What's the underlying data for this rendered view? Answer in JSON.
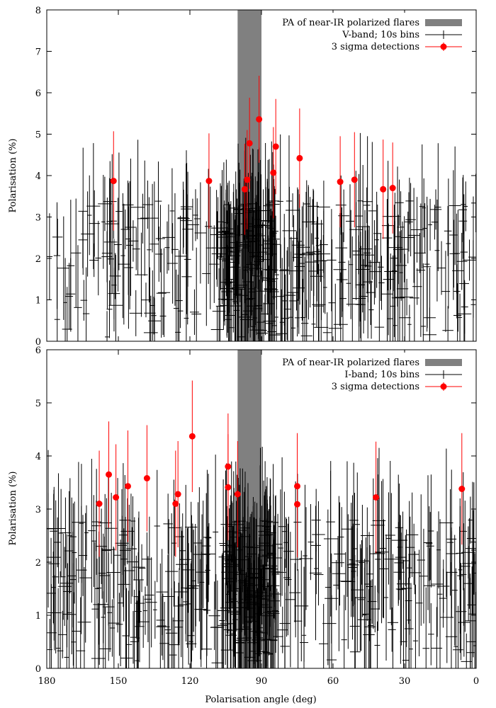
{
  "chart_data": [
    {
      "type": "scatter",
      "panel": "top",
      "title": "",
      "xlabel": "",
      "ylabel": "Polarisation (%)",
      "xlim": [
        180,
        0
      ],
      "ylim": [
        0,
        8
      ],
      "xticks": [],
      "yticks": [
        0,
        1,
        2,
        3,
        4,
        5,
        6,
        7,
        8
      ],
      "band": {
        "name": "PA of near-IR polarized flares",
        "from": 90,
        "to": 100,
        "color": "#808080"
      },
      "legend": [
        "PA of near-IR polarized flares",
        "V-band; 10s bins",
        "3 sigma detections"
      ],
      "legend_position": "top-right",
      "series": [
        {
          "name": "V-band; 10s bins",
          "kind": "errorbar-noise",
          "color": "#000000",
          "count": 450,
          "x_range": [
            0,
            180
          ],
          "y_range": [
            0.1,
            3.4
          ],
          "dense_around": 95
        },
        {
          "name": "3 sigma detections",
          "kind": "points-with-error",
          "color": "#ff0000",
          "points": [
            {
              "x": 152,
              "y": 3.87,
              "err": 1.2
            },
            {
              "x": 112,
              "y": 3.87,
              "err": 1.15
            },
            {
              "x": 97,
              "y": 3.67,
              "err": 1.1
            },
            {
              "x": 96,
              "y": 3.9,
              "err": 1.2
            },
            {
              "x": 95,
              "y": 4.78,
              "err": 1.1
            },
            {
              "x": 91,
              "y": 5.36,
              "err": 1.05
            },
            {
              "x": 85,
              "y": 4.07,
              "err": 1.1
            },
            {
              "x": 84,
              "y": 4.7,
              "err": 1.15
            },
            {
              "x": 74,
              "y": 4.42,
              "err": 1.2
            },
            {
              "x": 57,
              "y": 3.85,
              "err": 1.1
            },
            {
              "x": 51,
              "y": 3.9,
              "err": 1.15
            },
            {
              "x": 39,
              "y": 3.67,
              "err": 1.2
            },
            {
              "x": 35,
              "y": 3.7,
              "err": 1.1
            }
          ]
        }
      ]
    },
    {
      "type": "scatter",
      "panel": "bottom",
      "title": "",
      "xlabel": "Polarisation angle (deg)",
      "ylabel": "Polarisation (%)",
      "xlim": [
        180,
        0
      ],
      "ylim": [
        0,
        6
      ],
      "xticks": [
        180,
        150,
        120,
        90,
        60,
        30,
        0
      ],
      "yticks": [
        0,
        1,
        2,
        3,
        4,
        5,
        6
      ],
      "band": {
        "name": "PA of near-IR polarized flares",
        "from": 90,
        "to": 100,
        "color": "#808080"
      },
      "legend": [
        "PA of near-IR polarized flares",
        "I-band; 10s bins",
        "3 sigma detections"
      ],
      "legend_position": "top-right",
      "series": [
        {
          "name": "I-band; 10s bins",
          "kind": "errorbar-noise",
          "color": "#000000",
          "count": 500,
          "x_range": [
            0,
            180
          ],
          "y_range": [
            0.1,
            2.8
          ],
          "dense_around": 95
        },
        {
          "name": "3 sigma detections",
          "kind": "points-with-error",
          "color": "#ff0000",
          "points": [
            {
              "x": 158,
              "y": 3.1,
              "err": 1.0
            },
            {
              "x": 154,
              "y": 3.65,
              "err": 1.0
            },
            {
              "x": 151,
              "y": 3.22,
              "err": 1.0
            },
            {
              "x": 146,
              "y": 3.43,
              "err": 1.05
            },
            {
              "x": 138,
              "y": 3.58,
              "err": 1.0
            },
            {
              "x": 126,
              "y": 3.1,
              "err": 1.0
            },
            {
              "x": 125,
              "y": 3.28,
              "err": 1.0
            },
            {
              "x": 119,
              "y": 4.37,
              "err": 1.05
            },
            {
              "x": 104,
              "y": 3.8,
              "err": 1.0
            },
            {
              "x": 104,
              "y": 3.41,
              "err": 1.0
            },
            {
              "x": 100,
              "y": 3.28,
              "err": 1.0
            },
            {
              "x": 75,
              "y": 3.43,
              "err": 1.0
            },
            {
              "x": 75,
              "y": 3.09,
              "err": 1.0
            },
            {
              "x": 42,
              "y": 3.22,
              "err": 1.05
            },
            {
              "x": 6,
              "y": 3.38,
              "err": 1.05
            }
          ]
        }
      ]
    }
  ]
}
